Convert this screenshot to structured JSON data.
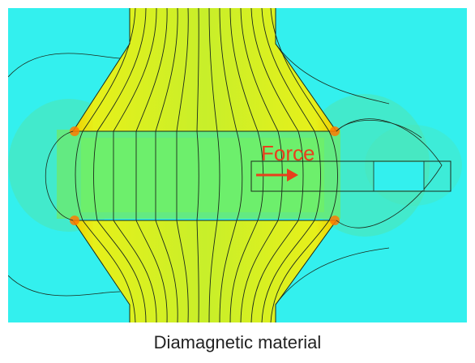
{
  "figure": {
    "force_label": "Force",
    "caption": "Diamagnetic material"
  },
  "colors": {
    "background_field": "#33f0ee",
    "weak_field": "#4fe6b0",
    "medium_field": "#6ef068",
    "strong_field": "#d6f21a",
    "peak_field": "#ffb000",
    "field_lines": "#1b2a1b",
    "arrow": "#e8401c"
  },
  "icons": {
    "arrow": "right-arrow-icon"
  }
}
